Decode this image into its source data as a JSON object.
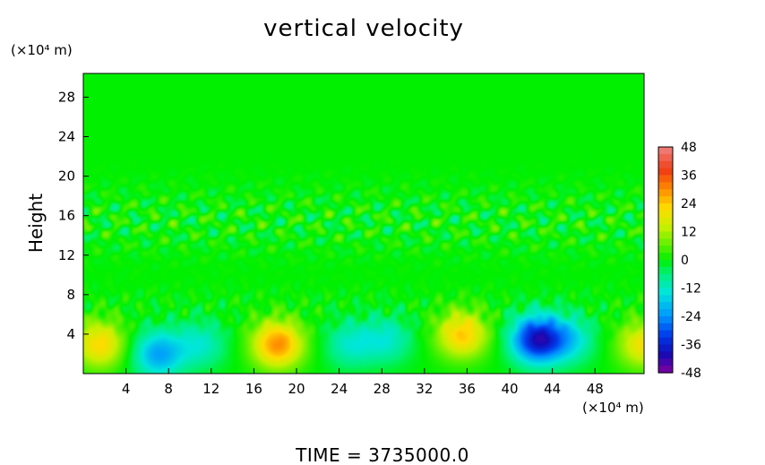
{
  "chart_data": {
    "type": "heatmap",
    "title": "vertical velocity",
    "ylabel": "Height",
    "y_unit": "(×10⁴ m)",
    "x_unit": "(×10⁴ m)",
    "xlim": [
      0,
      52.6
    ],
    "ylim": [
      0,
      30.4
    ],
    "x_ticks": [
      4,
      8,
      12,
      16,
      20,
      24,
      28,
      32,
      36,
      40,
      44,
      48
    ],
    "y_ticks": [
      4,
      8,
      12,
      16,
      20,
      24,
      28
    ],
    "colorbar_ticks": [
      48,
      36,
      24,
      12,
      0,
      -12,
      -24,
      -36,
      -48
    ],
    "colorbar_range": [
      -48,
      48
    ],
    "footer": "TIME = 3735000.0",
    "features": [
      {
        "x": 1.5,
        "y": 3.0,
        "value": 22
      },
      {
        "x": 7.0,
        "y": 2.0,
        "value": -22
      },
      {
        "x": 18.2,
        "y": 3.0,
        "value": 30
      },
      {
        "x": 35.5,
        "y": 4.0,
        "value": 24
      },
      {
        "x": 42.5,
        "y": 3.5,
        "value": -38
      },
      {
        "x": 52.5,
        "y": 3.0,
        "value": 20
      },
      {
        "x": 25.0,
        "y": 3.0,
        "value": -12
      },
      {
        "x": 28.5,
        "y": 3.5,
        "value": -12
      },
      {
        "x": 11.0,
        "y": 3.0,
        "value": -12
      },
      {
        "x": 45.5,
        "y": 3.5,
        "value": -15
      }
    ]
  }
}
